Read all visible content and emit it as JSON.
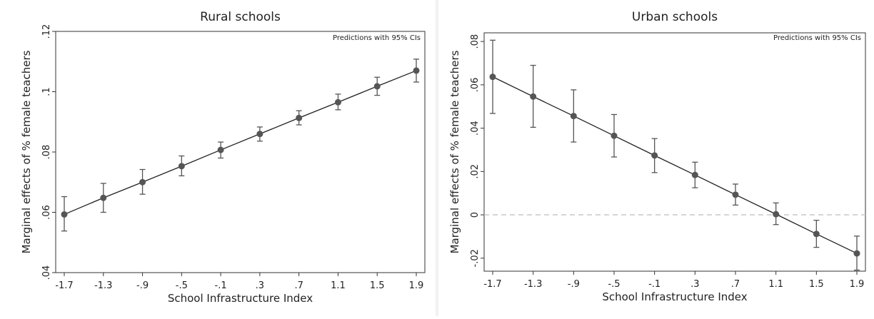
{
  "chart_data": [
    {
      "type": "scatter",
      "title": "Rural schools",
      "note": "Predictions with 95% CIs",
      "xlabel": "School Infrastructure Index",
      "ylabel": "Marginal effects of % female teachers",
      "x_ticks": [
        "-1.7",
        "-1.3",
        "-.9",
        "-.5",
        "-.1",
        ".3",
        ".7",
        "1.1",
        "1.5",
        "1.9"
      ],
      "y_ticks": [
        ".04",
        ".06",
        ".08",
        ".1",
        ".12"
      ],
      "y_tick_values": [
        0.04,
        0.06,
        0.08,
        0.1,
        0.12
      ],
      "xlim": [
        -1.7,
        1.9
      ],
      "ylim": [
        0.04,
        0.12
      ],
      "x": [
        -1.7,
        -1.3,
        -0.9,
        -0.5,
        -0.1,
        0.3,
        0.7,
        1.1,
        1.5,
        1.9
      ],
      "y": [
        0.0593,
        0.0648,
        0.07,
        0.0753,
        0.0807,
        0.086,
        0.0913,
        0.0965,
        0.1018,
        0.107
      ],
      "ci_low": [
        0.0538,
        0.06,
        0.066,
        0.0721,
        0.078,
        0.0836,
        0.089,
        0.094,
        0.0988,
        0.1032
      ],
      "ci_high": [
        0.0652,
        0.0696,
        0.0742,
        0.0787,
        0.0833,
        0.0883,
        0.0937,
        0.0992,
        0.1048,
        0.1108
      ],
      "reference_line": null,
      "grid": false
    },
    {
      "type": "scatter",
      "title": "Urban schools",
      "note": "Predictions with 95% CIs",
      "xlabel": "School Infrastructure Index",
      "ylabel": "Marginal effects of % female teachers",
      "x_ticks": [
        "-1.7",
        "-1.3",
        "-.9",
        "-.5",
        "-.1",
        ".3",
        ".7",
        "1.1",
        "1.5",
        "1.9"
      ],
      "y_ticks": [
        "-.02",
        "0",
        ".02",
        ".04",
        ".06",
        ".08"
      ],
      "y_tick_values": [
        -0.02,
        0,
        0.02,
        0.04,
        0.06,
        0.08
      ],
      "xlim": [
        -1.7,
        1.9
      ],
      "ylim": [
        -0.026,
        0.084
      ],
      "x": [
        -1.7,
        -1.3,
        -0.9,
        -0.5,
        -0.1,
        0.3,
        0.7,
        1.1,
        1.5,
        1.9
      ],
      "y": [
        0.0637,
        0.0546,
        0.0456,
        0.0365,
        0.0274,
        0.0184,
        0.0093,
        0.0003,
        -0.0088,
        -0.0178
      ],
      "ci_low": [
        0.0468,
        0.0404,
        0.0336,
        0.0267,
        0.0195,
        0.0125,
        0.0045,
        -0.0045,
        -0.015,
        -0.0255
      ],
      "ci_high": [
        0.0806,
        0.069,
        0.0577,
        0.0463,
        0.0352,
        0.0243,
        0.0142,
        0.0055,
        -0.0025,
        -0.0098
      ],
      "reference_line": 0,
      "grid": false
    }
  ],
  "colors": {
    "series": "#555555",
    "line": "#222222",
    "reference_line": "#c8c8c8",
    "axis": "#333333"
  }
}
